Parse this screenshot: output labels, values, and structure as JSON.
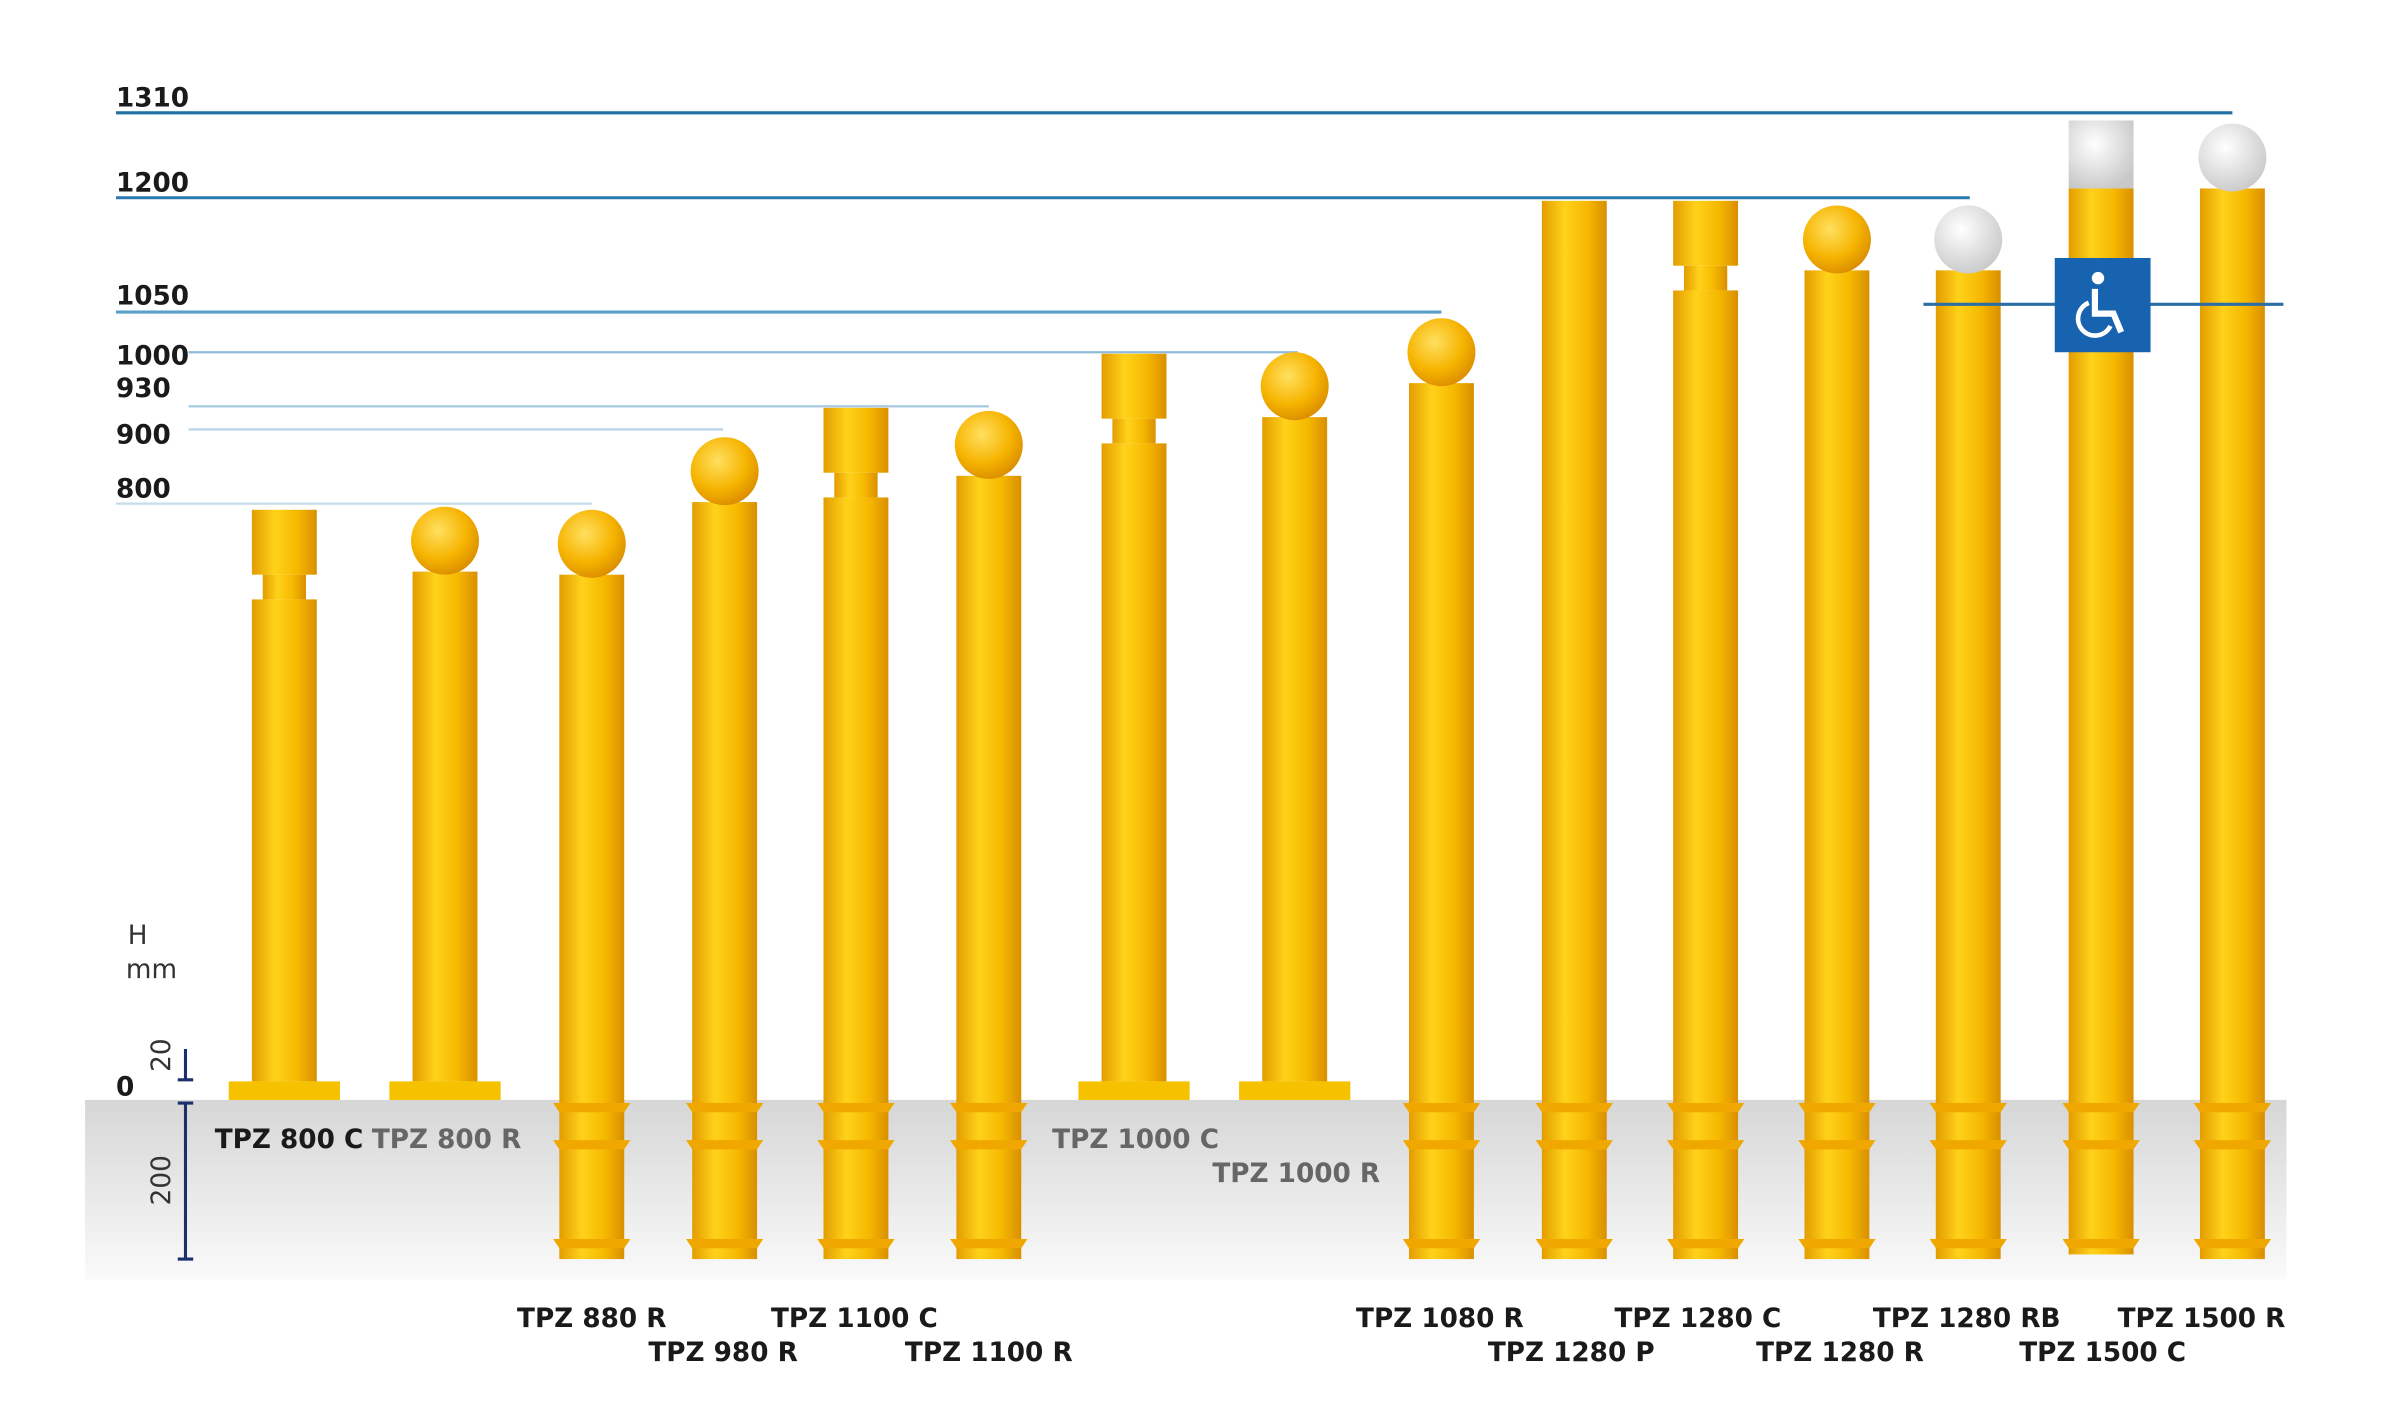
{
  "levels": [
    "1310",
    "1200",
    "1050",
    "1000",
    "930",
    "900",
    "800",
    "0"
  ],
  "dimension": {
    "symbol": "H",
    "unit": "mm",
    "plate": "20",
    "depth": "200"
  },
  "products": [
    "TPZ 800 C",
    "TPZ 800 R",
    "TPZ 880 R",
    "TPZ 980 R",
    "TPZ 1100 C",
    "TPZ 1100 R",
    "TPZ 1000 C",
    "TPZ 1000 R",
    "TPZ 1080 R",
    "TPZ 1280 P",
    "TPZ 1280 C",
    "TPZ 1280 R",
    "TPZ 1280 RB",
    "TPZ 1500 C",
    "TPZ 1500 R"
  ]
}
